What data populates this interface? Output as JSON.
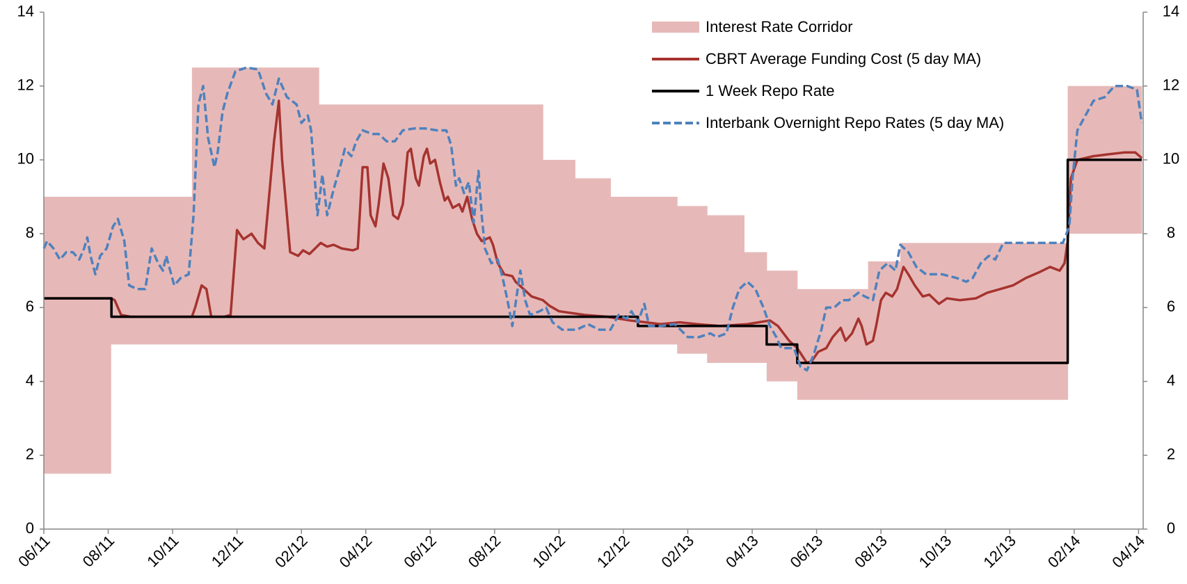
{
  "chart_data": {
    "type": "line",
    "xlim": [
      0,
      34.1
    ],
    "xticks": [
      {
        "value": 0,
        "label": "06/11"
      },
      {
        "value": 2,
        "label": "08/11"
      },
      {
        "value": 4,
        "label": "10/11"
      },
      {
        "value": 6,
        "label": "12/11"
      },
      {
        "value": 8,
        "label": "02/12"
      },
      {
        "value": 10,
        "label": "04/12"
      },
      {
        "value": 12,
        "label": "06/12"
      },
      {
        "value": 14,
        "label": "08/12"
      },
      {
        "value": 16,
        "label": "10/12"
      },
      {
        "value": 18,
        "label": "12/12"
      },
      {
        "value": 20,
        "label": "02/13"
      },
      {
        "value": 22,
        "label": "04/13"
      },
      {
        "value": 24,
        "label": "06/13"
      },
      {
        "value": 26,
        "label": "08/13"
      },
      {
        "value": 28,
        "label": "10/13"
      },
      {
        "value": 30,
        "label": "12/13"
      },
      {
        "value": 32,
        "label": "02/14"
      },
      {
        "value": 34,
        "label": "04/14"
      }
    ],
    "ylim": [
      0,
      14
    ],
    "yticks": [
      0,
      2,
      4,
      6,
      8,
      10,
      12,
      14
    ],
    "y2lim": [
      0,
      14
    ],
    "y2ticks": [
      0,
      2,
      4,
      6,
      8,
      10,
      12,
      14
    ],
    "legend": "top-right",
    "series": [
      {
        "name": "Interest Rate Corridor",
        "type": "band",
        "color": "#e6b9b8",
        "edges": [
          0,
          2.08,
          4.6,
          8.54,
          15.5,
          16.5,
          17.6,
          19.67,
          20.6,
          21.75,
          22.45,
          23.4,
          25.6,
          26.6,
          31.8,
          34.1
        ],
        "lower": [
          1.5,
          5,
          5,
          5,
          5,
          5,
          5,
          4.75,
          4.5,
          4.5,
          4,
          3.5,
          3.5,
          3.5,
          8
        ],
        "upper": [
          9,
          9,
          12.5,
          11.5,
          10,
          9.5,
          9,
          8.75,
          8.5,
          7.5,
          7,
          6.5,
          7.25,
          7.75,
          12
        ]
      },
      {
        "name": "CBRT Average Funding Cost (5 day MA)",
        "type": "line",
        "color": "#a6332f",
        "dash": false,
        "x": [
          0,
          2.1,
          2.2,
          2.4,
          2.7,
          4.6,
          4.7,
          4.9,
          5.05,
          5.2,
          5.6,
          5.8,
          6.0,
          6.2,
          6.45,
          6.65,
          6.85,
          7.15,
          7.3,
          7.4,
          7.5,
          7.65,
          7.9,
          8.05,
          8.25,
          8.6,
          8.8,
          9.0,
          9.25,
          9.6,
          9.75,
          9.9,
          10.05,
          10.15,
          10.3,
          10.4,
          10.55,
          10.7,
          10.85,
          11.0,
          11.15,
          11.3,
          11.4,
          11.55,
          11.65,
          11.8,
          11.9,
          12.0,
          12.15,
          12.3,
          12.45,
          12.55,
          12.7,
          12.9,
          13.0,
          13.15,
          13.3,
          13.45,
          13.6,
          13.85,
          13.95,
          14.1,
          14.3,
          14.55,
          14.65,
          14.9,
          15.15,
          15.5,
          15.7,
          16.0,
          16.8,
          17.5,
          18.2,
          18.7,
          19.15,
          19.75,
          20.3,
          21.0,
          21.85,
          22.2,
          22.55,
          22.8,
          23.15,
          23.4,
          23.7,
          23.85,
          24.05,
          24.3,
          24.5,
          24.75,
          24.9,
          25.1,
          25.3,
          25.4,
          25.55,
          25.75,
          25.85,
          26.0,
          26.15,
          26.35,
          26.5,
          26.7,
          26.85,
          27.05,
          27.3,
          27.5,
          27.8,
          28.05,
          28.45,
          28.95,
          29.3,
          29.7,
          30.1,
          30.5,
          30.9,
          31.25,
          31.55,
          31.7,
          31.8,
          31.9,
          32.1,
          32.6,
          33.05,
          33.55,
          33.9,
          34.1
        ],
        "values": [
          6.25,
          6.25,
          6.2,
          5.8,
          5.75,
          5.75,
          6.0,
          6.6,
          6.5,
          5.75,
          5.75,
          5.8,
          8.1,
          7.85,
          8.0,
          7.75,
          7.6,
          10.5,
          11.6,
          10,
          9,
          7.5,
          7.4,
          7.55,
          7.45,
          7.75,
          7.65,
          7.7,
          7.6,
          7.55,
          7.6,
          9.8,
          9.8,
          8.5,
          8.2,
          8.8,
          9.9,
          9.5,
          8.5,
          8.4,
          8.8,
          10.2,
          10.3,
          9.5,
          9.3,
          10.1,
          10.3,
          9.9,
          10.0,
          9.4,
          8.9,
          9.0,
          8.7,
          8.8,
          8.6,
          9.0,
          8.4,
          8.0,
          7.8,
          7.9,
          7.7,
          7.2,
          6.9,
          6.85,
          6.7,
          6.5,
          6.3,
          6.2,
          6.05,
          5.9,
          5.8,
          5.75,
          5.65,
          5.6,
          5.55,
          5.6,
          5.55,
          5.5,
          5.55,
          5.6,
          5.65,
          5.5,
          5.1,
          4.9,
          4.5,
          4.55,
          4.8,
          4.9,
          5.2,
          5.45,
          5.1,
          5.3,
          5.7,
          5.5,
          5.0,
          5.1,
          5.5,
          6.2,
          6.4,
          6.3,
          6.5,
          7.1,
          6.9,
          6.6,
          6.3,
          6.35,
          6.1,
          6.25,
          6.2,
          6.25,
          6.4,
          6.5,
          6.6,
          6.8,
          6.95,
          7.1,
          7.0,
          7.2,
          7.8,
          9.5,
          10.0,
          10.1,
          10.15,
          10.2,
          10.2,
          10.05
        ]
      },
      {
        "name": "1 Week Repo Rate",
        "type": "line",
        "color": "#000000",
        "dash": false,
        "x": [
          0,
          2.1,
          2.1,
          18.45,
          18.45,
          22.45,
          22.45,
          23.4,
          23.4,
          31.8,
          31.8,
          34.1
        ],
        "values": [
          6.25,
          6.25,
          5.75,
          5.75,
          5.5,
          5.5,
          5.0,
          5.0,
          4.5,
          4.5,
          10,
          10
        ]
      },
      {
        "name": "Interbank Overnight Repo Rates (5 day MA)",
        "type": "line",
        "color": "#4f81bd",
        "dash": true,
        "x": [
          0,
          0.1,
          0.3,
          0.5,
          0.7,
          0.9,
          1.1,
          1.25,
          1.35,
          1.45,
          1.6,
          1.75,
          1.95,
          2.15,
          2.3,
          2.5,
          2.65,
          2.9,
          3.15,
          3.35,
          3.55,
          3.7,
          3.8,
          4.05,
          4.25,
          4.5,
          4.65,
          4.8,
          4.95,
          5.1,
          5.3,
          5.4,
          5.55,
          5.7,
          5.95,
          6.3,
          6.65,
          6.9,
          7.1,
          7.3,
          7.55,
          7.85,
          8.0,
          8.2,
          8.3,
          8.5,
          8.65,
          8.8,
          9.0,
          9.2,
          9.35,
          9.55,
          9.7,
          9.9,
          10.2,
          10.4,
          10.65,
          10.9,
          11.15,
          11.5,
          11.85,
          12.2,
          12.5,
          12.65,
          12.8,
          12.9,
          13.05,
          13.2,
          13.35,
          13.5,
          13.6,
          13.7,
          13.9,
          14.1,
          14.25,
          14.4,
          14.55,
          14.65,
          14.8,
          14.95,
          15.1,
          15.4,
          15.6,
          15.8,
          16.1,
          16.55,
          16.9,
          17.25,
          17.6,
          17.85,
          18.1,
          18.25,
          18.45,
          18.65,
          18.8,
          19.15,
          19.6,
          20.0,
          20.35,
          20.7,
          20.9,
          21.2,
          21.4,
          21.6,
          21.85,
          22.1,
          22.35,
          22.55,
          22.75,
          22.9,
          23.3,
          23.5,
          23.7,
          23.9,
          24.15,
          24.3,
          24.55,
          24.8,
          25.0,
          25.3,
          25.5,
          25.75,
          25.95,
          26.2,
          26.45,
          26.6,
          26.85,
          27.1,
          27.4,
          27.9,
          28.35,
          28.65,
          28.85,
          29.1,
          29.35,
          29.55,
          29.8,
          30.5,
          31.2,
          31.65,
          31.85,
          31.95,
          32.1,
          32.35,
          32.6,
          32.95,
          33.25,
          33.65,
          33.95,
          34.1
        ],
        "values": [
          7.6,
          7.8,
          7.6,
          7.3,
          7.5,
          7.5,
          7.3,
          7.6,
          7.9,
          7.4,
          6.9,
          7.4,
          7.6,
          8.2,
          8.4,
          7.8,
          6.6,
          6.5,
          6.5,
          7.6,
          7.2,
          7.0,
          7.4,
          6.6,
          6.8,
          6.9,
          8.5,
          11.5,
          12.0,
          10.6,
          9.8,
          10.2,
          11.3,
          11.8,
          12.4,
          12.5,
          12.45,
          11.8,
          11.5,
          12.2,
          11.7,
          11.5,
          11.0,
          11.2,
          10.8,
          8.5,
          9.6,
          8.5,
          9.2,
          9.8,
          10.3,
          10.1,
          10.5,
          10.8,
          10.7,
          10.7,
          10.5,
          10.5,
          10.8,
          10.85,
          10.85,
          10.8,
          10.8,
          10.4,
          9.3,
          9.5,
          9.1,
          9.4,
          8.3,
          9.7,
          8.5,
          7.6,
          7.2,
          7.3,
          6.8,
          6.2,
          5.5,
          6.1,
          7.0,
          6.2,
          5.8,
          5.9,
          6.0,
          5.6,
          5.4,
          5.4,
          5.55,
          5.4,
          5.4,
          5.8,
          5.7,
          5.9,
          5.6,
          6.1,
          5.5,
          5.5,
          5.55,
          5.2,
          5.2,
          5.3,
          5.2,
          5.3,
          6.0,
          6.5,
          6.7,
          6.5,
          6.0,
          5.5,
          5.2,
          4.9,
          4.9,
          4.4,
          4.3,
          4.7,
          5.4,
          6.0,
          6.0,
          6.2,
          6.2,
          6.4,
          6.3,
          6.2,
          7.0,
          7.2,
          7.0,
          7.7,
          7.5,
          7.1,
          6.9,
          6.9,
          6.8,
          6.7,
          6.8,
          7.2,
          7.4,
          7.3,
          7.75,
          7.75,
          7.75,
          7.75,
          8.2,
          9.5,
          10.8,
          11.2,
          11.6,
          11.7,
          12.0,
          12.0,
          11.9,
          11.0
        ]
      }
    ]
  }
}
